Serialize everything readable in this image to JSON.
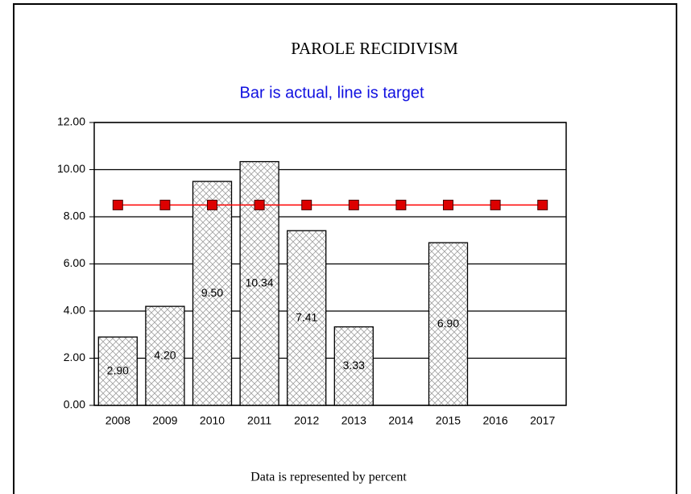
{
  "chart_data": {
    "type": "combo",
    "title": "PAROLE RECIDIVISM",
    "subtitle": "Bar is actual, line is target",
    "footer": "Data is represented by percent",
    "categories": [
      "2008",
      "2009",
      "2010",
      "2011",
      "2012",
      "2013",
      "2014",
      "2015",
      "2016",
      "2017"
    ],
    "series": [
      {
        "type": "bar",
        "color": "#a0a0a0",
        "values": [
          2.9,
          4.2,
          9.5,
          10.34,
          7.41,
          3.33,
          null,
          6.9,
          null,
          null
        ],
        "value_labels": [
          "2.90",
          "4.20",
          "9.50",
          "10.34",
          "7.41",
          "3.33",
          null,
          "6.90",
          null,
          null
        ]
      },
      {
        "type": "line",
        "color": "#ff0000",
        "marker_color": "#dd0000",
        "values": [
          8.5,
          8.5,
          8.5,
          8.5,
          8.5,
          8.5,
          8.5,
          8.5,
          8.5,
          8.5
        ]
      }
    ],
    "ylim": [
      0,
      12
    ],
    "yticks": [
      {
        "value": 0,
        "label": "0.00"
      },
      {
        "value": 2,
        "label": "2.00"
      },
      {
        "value": 4,
        "label": "4.00"
      },
      {
        "value": 6,
        "label": "6.00"
      },
      {
        "value": 8,
        "label": "8.00"
      },
      {
        "value": 10,
        "label": "10.00"
      },
      {
        "value": 12,
        "label": "12.00"
      }
    ],
    "grid": true
  }
}
